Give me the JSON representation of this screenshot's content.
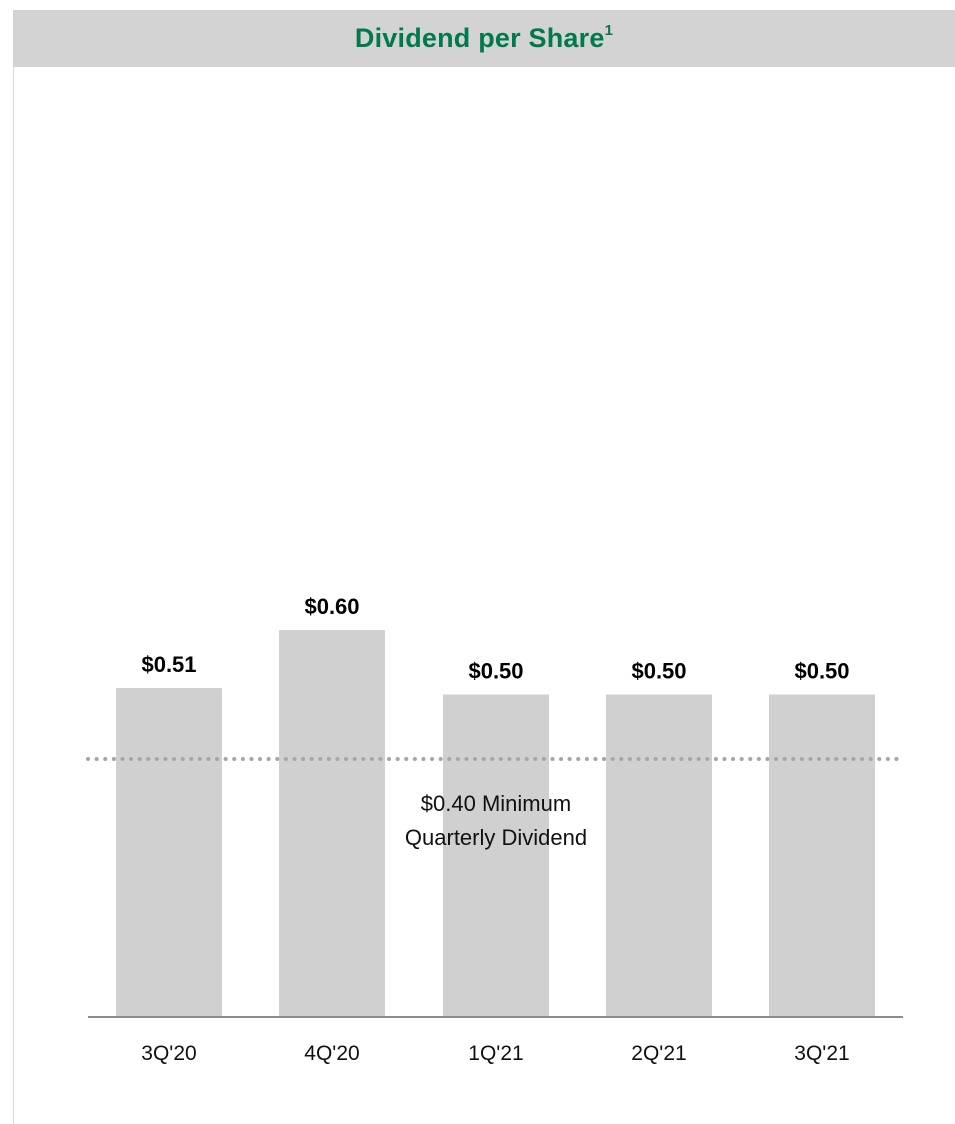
{
  "header": {
    "title": "Dividend per Share",
    "footnote_mark": "1"
  },
  "chart_data": {
    "type": "bar",
    "categories": [
      "3Q'20",
      "4Q'20",
      "1Q'21",
      "2Q'21",
      "3Q'21"
    ],
    "values": [
      0.51,
      0.6,
      0.5,
      0.5,
      0.5
    ],
    "value_labels": [
      "$0.51",
      "$0.60",
      "$0.50",
      "$0.50",
      "$0.50"
    ],
    "bar_color": "#d0d0d0",
    "reference_line": {
      "value": 0.4,
      "style": "dotted",
      "color": "#a6a6a6",
      "label_lines": [
        "$0.40 Minimum",
        "Quarterly Dividend"
      ]
    },
    "grid": false,
    "legend": "none"
  }
}
